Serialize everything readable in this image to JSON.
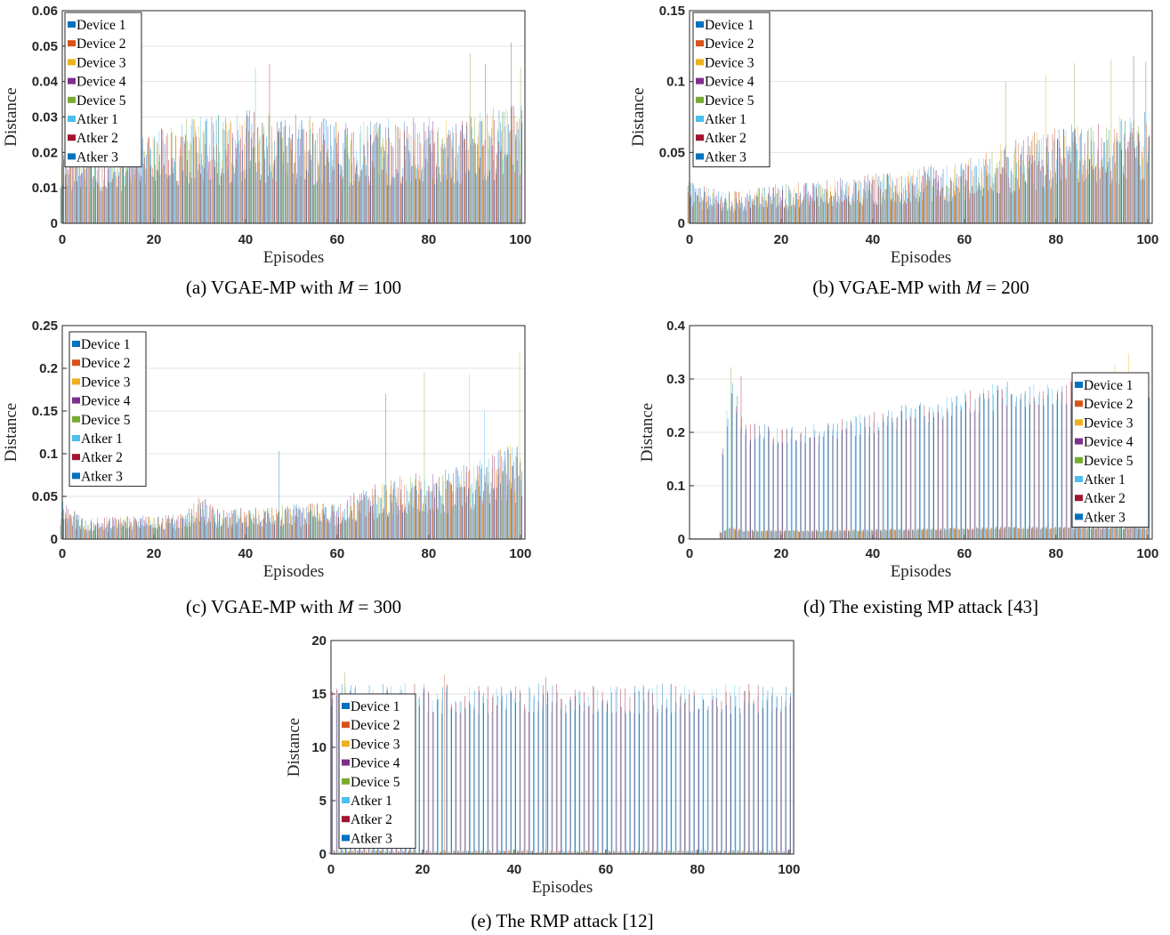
{
  "legend_colors": [
    "#0072BD",
    "#D95319",
    "#EDB120",
    "#7E2F8E",
    "#77AC30",
    "#4DBEEE",
    "#A2142F",
    "#0072BD"
  ],
  "chart_data": [
    {
      "type": "bar",
      "caption_prefix": "(a) VGAE-MP with",
      "caption_var": "M",
      "caption_suffix": "= 100",
      "xlabel": "Episodes",
      "ylabel": "Distance",
      "xlim": [
        0,
        101
      ],
      "ylim": [
        0,
        0.06
      ],
      "yticks": [
        "0",
        "0.01",
        "0.02",
        "0.03",
        "0.04",
        "0.05",
        "0.06"
      ],
      "xticks": [
        "0",
        "20",
        "40",
        "60",
        "80",
        "100"
      ],
      "grid": true,
      "legend": "top-left",
      "series_names": [
        "Device 1",
        "Device 2",
        "Device 3",
        "Device 4",
        "Device 5",
        "Atker 1",
        "Atker 2",
        "Atker 3"
      ],
      "profile": [
        [
          0,
          0.022
        ],
        [
          10,
          0.025
        ],
        [
          20,
          0.028
        ],
        [
          40,
          0.032
        ],
        [
          60,
          0.03
        ],
        [
          80,
          0.03
        ],
        [
          90,
          0.032
        ],
        [
          100,
          0.034
        ]
      ],
      "spikes": [
        [
          1,
          0.038
        ],
        [
          42,
          0.044
        ],
        [
          45,
          0.045
        ],
        [
          89,
          0.048
        ],
        [
          92,
          0.045
        ],
        [
          98,
          0.051
        ],
        [
          100,
          0.044
        ]
      ]
    },
    {
      "type": "bar",
      "caption_prefix": "(b) VGAE-MP with",
      "caption_var": "M",
      "caption_suffix": "= 200",
      "xlabel": "Episodes",
      "ylabel": "Distance",
      "xlim": [
        0,
        101
      ],
      "ylim": [
        0,
        0.15
      ],
      "yticks": [
        "0",
        "0.05",
        "0.1",
        "0.15"
      ],
      "xticks": [
        "0",
        "20",
        "40",
        "60",
        "80",
        "100"
      ],
      "grid": true,
      "legend": "top-left",
      "series_names": [
        "Device 1",
        "Device 2",
        "Device 3",
        "Device 4",
        "Device 5",
        "Atker 1",
        "Atker 2",
        "Atker 3"
      ],
      "profile": [
        [
          0,
          0.03
        ],
        [
          8,
          0.022
        ],
        [
          20,
          0.028
        ],
        [
          40,
          0.035
        ],
        [
          60,
          0.045
        ],
        [
          70,
          0.06
        ],
        [
          80,
          0.07
        ],
        [
          100,
          0.08
        ]
      ],
      "spikes": [
        [
          69,
          0.1
        ],
        [
          78,
          0.105
        ],
        [
          84,
          0.113
        ],
        [
          92,
          0.115
        ],
        [
          97,
          0.118
        ],
        [
          100,
          0.114
        ]
      ]
    },
    {
      "type": "bar",
      "caption_prefix": "(c) VGAE-MP with",
      "caption_var": "M",
      "caption_suffix": "= 300",
      "xlabel": "Episodes",
      "ylabel": "Distance",
      "xlim": [
        0,
        101
      ],
      "ylim": [
        0,
        0.25
      ],
      "yticks": [
        "0",
        "0.05",
        "0.1",
        "0.15",
        "0.2",
        "0.25"
      ],
      "xticks": [
        "0",
        "20",
        "40",
        "60",
        "80",
        "100"
      ],
      "grid": true,
      "legend": "top-left",
      "series_names": [
        "Device 1",
        "Device 2",
        "Device 3",
        "Device 4",
        "Device 5",
        "Atker 1",
        "Atker 2",
        "Atker 3"
      ],
      "profile": [
        [
          0,
          0.045
        ],
        [
          5,
          0.025
        ],
        [
          27,
          0.03
        ],
        [
          30,
          0.05
        ],
        [
          35,
          0.035
        ],
        [
          47,
          0.04
        ],
        [
          60,
          0.045
        ],
        [
          70,
          0.07
        ],
        [
          80,
          0.08
        ],
        [
          90,
          0.09
        ],
        [
          100,
          0.12
        ]
      ],
      "spikes": [
        [
          47,
          0.103
        ],
        [
          71,
          0.17
        ],
        [
          79,
          0.195
        ],
        [
          89,
          0.193
        ],
        [
          92,
          0.15
        ],
        [
          100,
          0.22
        ]
      ]
    },
    {
      "type": "bar",
      "caption_prefix": "(d) The existing MP attack [43]",
      "caption_var": "",
      "caption_suffix": "",
      "xlabel": "Episodes",
      "ylabel": "Distance",
      "xlim": [
        0,
        101
      ],
      "ylim": [
        0,
        0.4
      ],
      "yticks": [
        "0",
        "0.1",
        "0.2",
        "0.3",
        "0.4"
      ],
      "xticks": [
        "0",
        "20",
        "40",
        "60",
        "80",
        "100"
      ],
      "grid": true,
      "legend": "right",
      "series_names": [
        "Device 1",
        "Device 2",
        "Device 3",
        "Device 4",
        "Device 5",
        "Atker 1",
        "Atker 2",
        "Atker 3"
      ],
      "profile": [
        [
          0,
          0.02
        ],
        [
          6,
          0.02
        ],
        [
          7,
          0.18
        ],
        [
          9,
          0.31
        ],
        [
          12,
          0.22
        ],
        [
          20,
          0.215
        ],
        [
          30,
          0.22
        ],
        [
          40,
          0.24
        ],
        [
          50,
          0.26
        ],
        [
          60,
          0.28
        ],
        [
          70,
          0.3
        ],
        [
          80,
          0.3
        ],
        [
          90,
          0.3
        ],
        [
          100,
          0.3
        ]
      ],
      "spikes": [
        [
          9,
          0.322
        ],
        [
          11,
          0.305
        ],
        [
          93,
          0.325
        ],
        [
          96,
          0.348
        ]
      ]
    },
    {
      "type": "bar",
      "caption_prefix": "(e) The RMP attack [12]",
      "caption_var": "",
      "caption_suffix": "",
      "xlabel": "Episodes",
      "ylabel": "Distance",
      "xlim": [
        0,
        101
      ],
      "ylim": [
        0,
        20
      ],
      "yticks": [
        "0",
        "5",
        "10",
        "15",
        "20"
      ],
      "xticks": [
        "0",
        "20",
        "40",
        "60",
        "80",
        "100"
      ],
      "grid": true,
      "legend": "left",
      "series_names": [
        "Device 1",
        "Device 2",
        "Device 3",
        "Device 4",
        "Device 5",
        "Atker 1",
        "Atker 2",
        "Atker 3"
      ],
      "profile": [
        [
          0,
          16
        ],
        [
          100,
          16
        ]
      ],
      "spikes": [
        [
          3,
          17.0
        ],
        [
          25,
          16.8
        ],
        [
          47,
          16.6
        ]
      ]
    }
  ]
}
